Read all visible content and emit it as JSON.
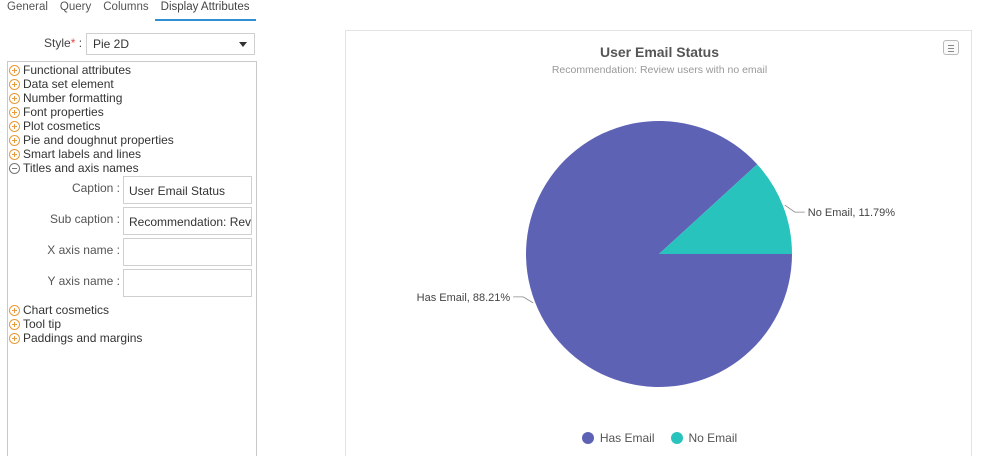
{
  "tabs": [
    {
      "label": "General"
    },
    {
      "label": "Query"
    },
    {
      "label": "Columns"
    },
    {
      "label": "Display Attributes"
    }
  ],
  "style_field": {
    "label": "Style",
    "required_mark": "*",
    "colon": " :",
    "value": "Pie 2D"
  },
  "tree": {
    "groups_top": [
      {
        "label": "Functional attributes"
      },
      {
        "label": "Data set element"
      },
      {
        "label": "Number formatting"
      },
      {
        "label": "Font properties"
      },
      {
        "label": "Plot cosmetics"
      },
      {
        "label": "Pie and doughnut properties"
      },
      {
        "label": "Smart labels and lines"
      }
    ],
    "expanded_group": {
      "label": "Titles and axis names"
    },
    "fields": [
      {
        "label": "Caption :",
        "value": "User Email Status"
      },
      {
        "label": "Sub caption :",
        "value": "Recommendation: Revi"
      },
      {
        "label": "X axis name :",
        "value": ""
      },
      {
        "label": "Y axis name :",
        "value": ""
      }
    ],
    "groups_bottom": [
      {
        "label": "Chart cosmetics"
      },
      {
        "label": "Tool tip"
      },
      {
        "label": "Paddings and margins"
      }
    ]
  },
  "chart_data": {
    "type": "pie",
    "title": "User Email Status",
    "subtitle": "Recommendation: Review users with no email",
    "slices": [
      {
        "label": "Has Email",
        "value": 88.21,
        "data_label": "Has Email, 88.21%",
        "color": "#5e62b5"
      },
      {
        "label": "No Email",
        "value": 11.79,
        "data_label": "No Email, 11.79%",
        "color": "#29c3be"
      }
    ],
    "legend_position": "bottom",
    "start_angle_deg": 0,
    "direction": "clockwise"
  },
  "icons": {
    "tree_expand": "plus-circle-icon",
    "tree_collapse": "minus-circle-icon",
    "chart_menu": "menu-icon"
  }
}
